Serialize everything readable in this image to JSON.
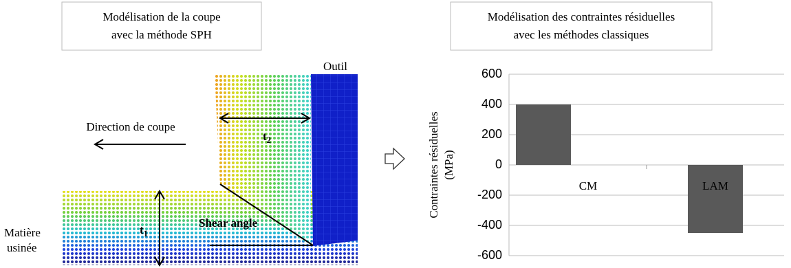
{
  "diagram": {
    "title": [
      "Modélisation de la coupe",
      "avec la méthode SPH"
    ],
    "tool_label": "Outil",
    "direction_label": "Direction de coupe",
    "t2": {
      "label": "t",
      "sub": "2"
    },
    "t1": {
      "label": "t",
      "sub": "1"
    },
    "shear_label": "Shear angle",
    "material_label": [
      "Matière",
      "usinée"
    ]
  },
  "chart_data": {
    "type": "bar",
    "title": [
      "Modélisation des contraintes résiduelles",
      "avec les méthodes classiques"
    ],
    "y_label": [
      "Contraintes résiduelles",
      "(MPa)"
    ],
    "categories": [
      "CM",
      "LAM"
    ],
    "values": [
      400,
      -450
    ],
    "color": "#595959",
    "ylim": [
      -600,
      600
    ],
    "yticks": [
      -600,
      -400,
      -200,
      0,
      200,
      400,
      600
    ],
    "grid": true
  }
}
